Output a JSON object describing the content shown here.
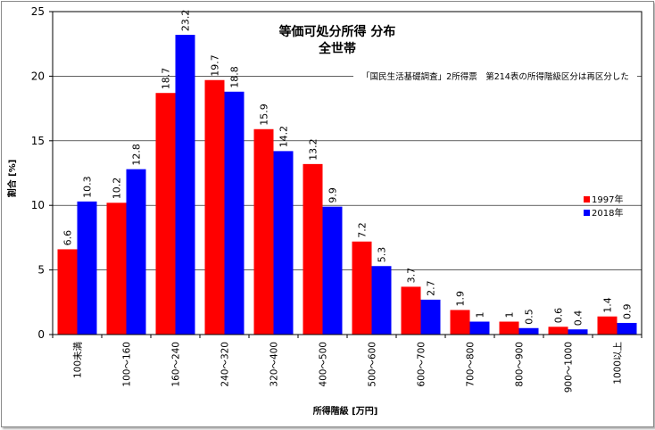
{
  "chart_data": {
    "type": "bar",
    "title": "等価可処分所得 分布",
    "subtitle": "全世帯",
    "annotation": "「国民生活基礎調査」2所得票　第214表の所得階級区分は再区分した",
    "xlabel": "所得階級 [万円]",
    "ylabel": "割合 [%]",
    "ylim": [
      0,
      25
    ],
    "yticks": [
      "0",
      "5",
      "10",
      "15",
      "20",
      "25"
    ],
    "grid": true,
    "legend_position": "right",
    "categories": [
      "100未満",
      "100～160",
      "160～240",
      "240～320",
      "320～400",
      "400～500",
      "500～600",
      "600～700",
      "700～800",
      "800～900",
      "900～1000",
      "1000以上"
    ],
    "series": [
      {
        "name": "1997年",
        "color": "#ff0000",
        "values": [
          6.6,
          10.2,
          18.7,
          19.7,
          15.9,
          13.2,
          7.2,
          3.7,
          1.9,
          1,
          0.6,
          1.4
        ]
      },
      {
        "name": "2018年",
        "color": "#0000ff",
        "values": [
          10.3,
          12.8,
          23.2,
          18.8,
          14.2,
          9.9,
          5.3,
          2.7,
          1,
          0.5,
          0.4,
          0.9
        ]
      }
    ]
  }
}
